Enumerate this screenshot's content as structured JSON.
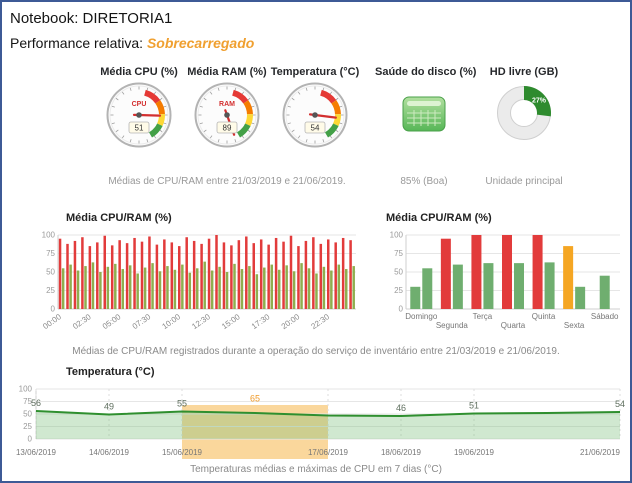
{
  "header": {
    "title": "Notebook: DIRETORIA1",
    "performance_label": "Performance relativa:",
    "performance_value": "Sobrecarregado",
    "performance_color": "#f0a030"
  },
  "metrics": {
    "cpu": {
      "label": "Média CPU (%)",
      "gauge_label": "CPU",
      "value": 51
    },
    "ram": {
      "label": "Média RAM (%)",
      "gauge_label": "RAM",
      "value": 89
    },
    "temp": {
      "label": "Temperatura (°C)",
      "gauge_label": "",
      "value": 54
    },
    "disk": {
      "label": "Saúde do disco (%)",
      "status": "85% (Boa)"
    },
    "hd": {
      "label": "HD livre (GB)",
      "percent": 27,
      "percent_label": "27%",
      "caption": "Unidade principal"
    },
    "caption": "Médias de CPU/RAM entre 21/03/2019 e 21/06/2019."
  },
  "captions": {
    "mid": "Médias de CPU/RAM registrados durante a operação do serviço de inventário entre 21/03/2019 e 21/06/2019.",
    "bottom": "Temperaturas médias e máximas de CPU em 7 dias (°C)"
  },
  "chart_data": [
    {
      "id": "cpu_ram_time",
      "type": "bar",
      "title": "Média CPU/RAM (%)",
      "xlabel": "",
      "ylabel": "",
      "ylim": [
        0,
        100
      ],
      "y_ticks": [
        0,
        25,
        50,
        75,
        100
      ],
      "x_ticks": [
        "00:00",
        "02:30",
        "05:00",
        "07:30",
        "10:00",
        "12:30",
        "15:00",
        "17:30",
        "20:00",
        "22:30"
      ],
      "legend": "none",
      "series": [
        {
          "name": "RAM",
          "color": "#e23b3b",
          "values": [
            95,
            88,
            92,
            97,
            85,
            90,
            99,
            86,
            93,
            89,
            96,
            91,
            98,
            87,
            94,
            90,
            85,
            97,
            92,
            88,
            95,
            100,
            90,
            86,
            93,
            98,
            89,
            94,
            87,
            96,
            91,
            99,
            85,
            92,
            97,
            88,
            94,
            90,
            96,
            93
          ]
        },
        {
          "name": "CPU",
          "color": "#8fae4f",
          "values": [
            55,
            60,
            52,
            58,
            63,
            50,
            57,
            61,
            54,
            59,
            48,
            56,
            62,
            51,
            58,
            53,
            60,
            49,
            55,
            64,
            52,
            57,
            50,
            61,
            54,
            58,
            47,
            56,
            60,
            53,
            59,
            51,
            62,
            55,
            48,
            57,
            52,
            60,
            54,
            58
          ]
        }
      ]
    },
    {
      "id": "cpu_ram_week",
      "type": "bar",
      "title": "Média CPU/RAM (%)",
      "ylim": [
        0,
        100
      ],
      "y_ticks": [
        0,
        25,
        50,
        75,
        100
      ],
      "categories": [
        "Domingo",
        "Segunda",
        "Terça",
        "Quarta",
        "Quinta",
        "Sexta",
        "Sábado"
      ],
      "bars": [
        [
          {
            "value": 30,
            "color": "#6fae6f"
          },
          {
            "value": 55,
            "color": "#6fae6f"
          }
        ],
        [
          {
            "value": 95,
            "color": "#e23b3b"
          },
          {
            "value": 60,
            "color": "#6fae6f"
          }
        ],
        [
          {
            "value": 100,
            "color": "#e23b3b"
          },
          {
            "value": 62,
            "color": "#6fae6f"
          }
        ],
        [
          {
            "value": 100,
            "color": "#e23b3b"
          },
          {
            "value": 62,
            "color": "#6fae6f"
          }
        ],
        [
          {
            "value": 100,
            "color": "#e23b3b"
          },
          {
            "value": 63,
            "color": "#6fae6f"
          }
        ],
        [
          {
            "value": 85,
            "color": "#f5a623"
          },
          {
            "value": 30,
            "color": "#6fae6f"
          }
        ],
        [
          {
            "value": 45,
            "color": "#6fae6f"
          }
        ]
      ]
    },
    {
      "id": "temperature",
      "type": "area",
      "title": "Temperatura (°C)",
      "ylim": [
        0,
        100
      ],
      "y_ticks": [
        0,
        25,
        50,
        75,
        100
      ],
      "line_color": "#2f8f2f",
      "fill_color": "rgba(120,190,120,0.35)",
      "points": [
        {
          "date": "13/06/2019",
          "value": 56,
          "label": "56"
        },
        {
          "date": "14/06/2019",
          "value": 49,
          "label": "49"
        },
        {
          "date": "15/06/2019",
          "value": 55,
          "label": "55"
        },
        {
          "date": "16/06/2019",
          "value": 52,
          "max": 65,
          "label": "65",
          "label_color": "#f09a28"
        },
        {
          "date": "17/06/2019",
          "value": 47
        },
        {
          "date": "18/06/2019",
          "value": 46,
          "label": "46"
        },
        {
          "date": "19/06/2019",
          "value": 51,
          "label": "51"
        },
        {
          "date": "20/06/2019",
          "value": 52
        },
        {
          "date": "21/06/2019",
          "value": 54,
          "label": "54"
        }
      ],
      "x_ticks": [
        "13/06/2019",
        "14/06/2019",
        "15/06/2019",
        "17/06/2019",
        "18/06/2019",
        "19/06/2019",
        "21/06/2019"
      ],
      "band": {
        "from": "15/06/2019",
        "to": "17/06/2019",
        "top": 68,
        "color": "rgba(245,166,35,0.45)"
      }
    }
  ]
}
